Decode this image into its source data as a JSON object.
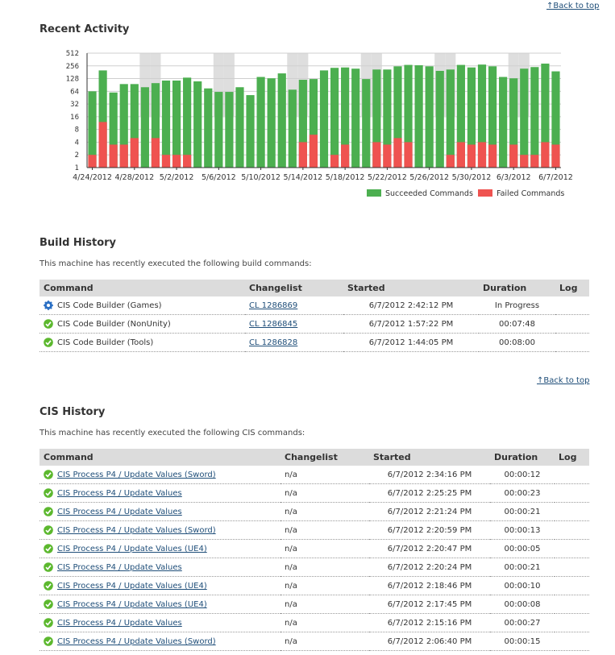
{
  "back_to_top_label": "↑Back to top",
  "recent_activity": {
    "title": "Recent Activity"
  },
  "chart_data": {
    "type": "bar",
    "stacked": false,
    "y_scale": "log2",
    "yticks": [
      "512",
      "256",
      "128",
      "64",
      "32",
      "16",
      "8",
      "4",
      "2",
      "1"
    ],
    "ylim": [
      1,
      512
    ],
    "grid": "horizontal",
    "legend_position": "bottom-right",
    "xtick_labels": [
      "4/24/2012",
      "4/28/2012",
      "5/2/2012",
      "5/6/2012",
      "5/10/2012",
      "5/14/2012",
      "5/18/2012",
      "5/22/2012",
      "5/26/2012",
      "5/30/2012",
      "6/3/2012",
      "6/7/2012"
    ],
    "weekend_highlight": [
      5,
      6,
      12,
      13,
      19,
      20,
      26,
      27,
      33,
      34,
      40,
      41
    ],
    "series": [
      {
        "name": "Succeeded Commands",
        "color": "#4caf50",
        "values": [
          64,
          200,
          60,
          95,
          95,
          80,
          100,
          115,
          115,
          135,
          110,
          75,
          62,
          62,
          80,
          52,
          140,
          130,
          170,
          70,
          120,
          125,
          200,
          230,
          235,
          220,
          125,
          210,
          210,
          250,
          270,
          265,
          250,
          195,
          210,
          270,
          235,
          275,
          250,
          140,
          130,
          220,
          240,
          290,
          190
        ]
      },
      {
        "name": "Failed Commands",
        "color": "#ef5350",
        "values": [
          2,
          12,
          3.5,
          3.5,
          5,
          0,
          5,
          2,
          2,
          2,
          0,
          0,
          0,
          0,
          0,
          0,
          0,
          0,
          0,
          0,
          4,
          6,
          0,
          2,
          3.5,
          0,
          0,
          4,
          3.5,
          5,
          4,
          0,
          0,
          0,
          2,
          4,
          3.5,
          4,
          3.5,
          0,
          3.5,
          2,
          2,
          4,
          3.5
        ]
      }
    ]
  },
  "build_history": {
    "title": "Build History",
    "description": "This machine has recently executed the following build commands:",
    "columns": {
      "command": "Command",
      "changelist": "Changelist",
      "started": "Started",
      "duration": "Duration",
      "log": "Log"
    },
    "rows": [
      {
        "status": "in-progress",
        "command": "CIS Code Builder (Games)",
        "changelist": "CL 1286869",
        "started": "6/7/2012 2:42:12 PM",
        "duration": "In Progress"
      },
      {
        "status": "success",
        "command": "CIS Code Builder (NonUnity)",
        "changelist": "CL 1286845",
        "started": "6/7/2012 1:57:22 PM",
        "duration": "00:07:48"
      },
      {
        "status": "success",
        "command": "CIS Code Builder (Tools)",
        "changelist": "CL 1286828",
        "started": "6/7/2012 1:44:05 PM",
        "duration": "00:08:00"
      }
    ]
  },
  "cis_history": {
    "title": "CIS History",
    "description": "This machine has recently executed the following CIS commands:",
    "columns": {
      "command": "Command",
      "changelist": "Changelist",
      "started": "Started",
      "duration": "Duration",
      "log": "Log"
    },
    "rows": [
      {
        "command": "CIS Process P4 / Update Values (Sword)",
        "changelist": "n/a",
        "started": "6/7/2012 2:34:16 PM",
        "duration": "00:00:12"
      },
      {
        "command": "CIS Process P4 / Update Values",
        "changelist": "n/a",
        "started": "6/7/2012 2:25:25 PM",
        "duration": "00:00:23"
      },
      {
        "command": "CIS Process P4 / Update Values",
        "changelist": "n/a",
        "started": "6/7/2012 2:21:24 PM",
        "duration": "00:00:21"
      },
      {
        "command": "CIS Process P4 / Update Values (Sword)",
        "changelist": "n/a",
        "started": "6/7/2012 2:20:59 PM",
        "duration": "00:00:13"
      },
      {
        "command": "CIS Process P4 / Update Values (UE4)",
        "changelist": "n/a",
        "started": "6/7/2012 2:20:47 PM",
        "duration": "00:00:05"
      },
      {
        "command": "CIS Process P4 / Update Values",
        "changelist": "n/a",
        "started": "6/7/2012 2:20:24 PM",
        "duration": "00:00:21"
      },
      {
        "command": "CIS Process P4 / Update Values (UE4)",
        "changelist": "n/a",
        "started": "6/7/2012 2:18:46 PM",
        "duration": "00:00:10"
      },
      {
        "command": "CIS Process P4 / Update Values (UE4)",
        "changelist": "n/a",
        "started": "6/7/2012 2:17:45 PM",
        "duration": "00:00:08"
      },
      {
        "command": "CIS Process P4 / Update Values",
        "changelist": "n/a",
        "started": "6/7/2012 2:15:16 PM",
        "duration": "00:00:27"
      },
      {
        "command": "CIS Process P4 / Update Values (Sword)",
        "changelist": "n/a",
        "started": "6/7/2012 2:06:40 PM",
        "duration": "00:00:15"
      }
    ]
  }
}
